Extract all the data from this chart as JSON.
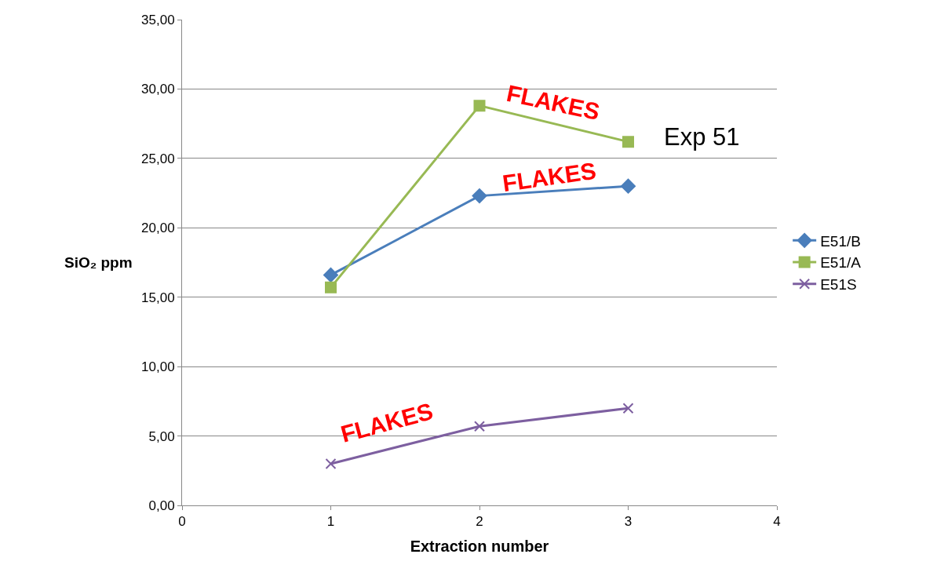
{
  "chart_data": {
    "type": "line",
    "xlabel": "Extraction number",
    "ylabel": "SiO₂ ppm",
    "x": [
      1,
      2,
      3
    ],
    "series": [
      {
        "name": "E51/B",
        "color": "#4a7ebb",
        "marker": "diamond",
        "values": [
          16.6,
          22.3,
          23.0
        ]
      },
      {
        "name": "E51/A",
        "color": "#98b954",
        "marker": "square",
        "values": [
          15.7,
          28.8,
          26.2
        ]
      },
      {
        "name": "E51S",
        "color": "#7d5fa0",
        "marker": "cross",
        "values": [
          3.0,
          5.7,
          7.0
        ]
      }
    ],
    "xlim": [
      0,
      4
    ],
    "xticks": [
      0,
      1,
      2,
      3,
      4
    ],
    "ylim": [
      0,
      35
    ],
    "yticks": [
      {
        "value": 0,
        "label": "0,00"
      },
      {
        "value": 5,
        "label": "5,00"
      },
      {
        "value": 10,
        "label": "10,00"
      },
      {
        "value": 15,
        "label": "15,00"
      },
      {
        "value": 20,
        "label": "20,00"
      },
      {
        "value": 25,
        "label": "25,00"
      },
      {
        "value": 30,
        "label": "30,00"
      },
      {
        "value": 35,
        "label": "35,00"
      }
    ],
    "grid": "y",
    "legend": "right",
    "annotations": [
      "FLAKES",
      "FLAKES",
      "FLAKES",
      "Exp 51"
    ]
  }
}
